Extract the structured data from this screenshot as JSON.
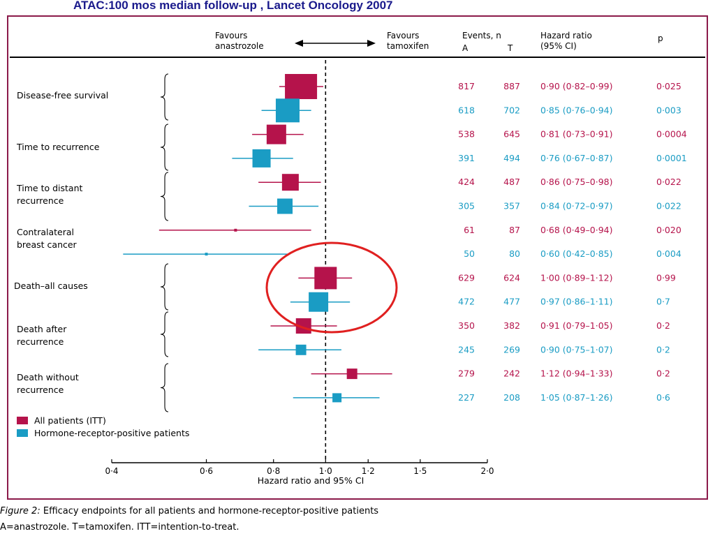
{
  "banner": "ATAC:100 mos median follow-up , Lancet Oncology 2007",
  "header": {
    "favours_a": "Favours\nanastrozole",
    "favours_t": "Favours\ntamoxifen",
    "events": "Events, n",
    "col_a": "A",
    "col_t": "T",
    "hr": "Hazard ratio\n(95% CI)",
    "p": "p"
  },
  "groups": [
    {
      "label": "Disease-free survival"
    },
    {
      "label": "Time to recurrence"
    },
    {
      "label": "Time to distant\nrecurrence"
    },
    {
      "label": "Contralateral\nbreast cancer"
    },
    {
      "label": "Death–all causes"
    },
    {
      "label": "Death after\nrecurrence"
    },
    {
      "label": "Death without\nrecurrence"
    }
  ],
  "legend": {
    "itt": "All patients (ITT)",
    "hr_pos": "Hormone-receptor-positive patients"
  },
  "colors": {
    "itt": "#b5134b",
    "hr_pos": "#1a9cc4",
    "highlight": "#e02020",
    "frame": "#8b1a4a"
  },
  "chart_data": {
    "type": "forest",
    "xlabel": "Hazard ratio and 95% CI",
    "xscale": "log",
    "xlim": [
      0.4,
      2.0
    ],
    "ticks": [
      "0·4",
      "0·6",
      "0·8",
      "1·0",
      "1·2",
      "1·5",
      "2·0"
    ],
    "tick_values": [
      0.4,
      0.6,
      0.8,
      1.0,
      1.2,
      1.5,
      2.0
    ],
    "reference_line": 1.0,
    "rows": [
      {
        "series": "itt",
        "a": "817",
        "t": "887",
        "hr": 0.9,
        "lo": 0.82,
        "hi": 0.99,
        "hr_text": "0·90 (0·82–0·99)",
        "p": "0·025"
      },
      {
        "series": "hr_pos",
        "a": "618",
        "t": "702",
        "hr": 0.85,
        "lo": 0.76,
        "hi": 0.94,
        "hr_text": "0·85 (0·76–0·94)",
        "p": "0·003"
      },
      {
        "series": "itt",
        "a": "538",
        "t": "645",
        "hr": 0.81,
        "lo": 0.73,
        "hi": 0.91,
        "hr_text": "0·81 (0·73–0·91)",
        "p": "0·0004"
      },
      {
        "series": "hr_pos",
        "a": "391",
        "t": "494",
        "hr": 0.76,
        "lo": 0.67,
        "hi": 0.87,
        "hr_text": "0·76 (0·67–0·87)",
        "p": "0·0001"
      },
      {
        "series": "itt",
        "a": "424",
        "t": "487",
        "hr": 0.86,
        "lo": 0.75,
        "hi": 0.98,
        "hr_text": "0·86 (0·75–0·98)",
        "p": "0·022"
      },
      {
        "series": "hr_pos",
        "a": "305",
        "t": "357",
        "hr": 0.84,
        "lo": 0.72,
        "hi": 0.97,
        "hr_text": "0·84 (0·72–0·97)",
        "p": "0·022"
      },
      {
        "series": "itt",
        "a": "61",
        "t": "87",
        "hr": 0.68,
        "lo": 0.49,
        "hi": 0.94,
        "hr_text": "0·68 (0·49–0·94)",
        "p": "0·020"
      },
      {
        "series": "hr_pos",
        "a": "50",
        "t": "80",
        "hr": 0.6,
        "lo": 0.42,
        "hi": 0.85,
        "hr_text": "0·60 (0·42–0·85)",
        "p": "0·004"
      },
      {
        "series": "itt",
        "a": "629",
        "t": "624",
        "hr": 1.0,
        "lo": 0.89,
        "hi": 1.12,
        "hr_text": "1·00 (0·89–1·12)",
        "p": "0·99"
      },
      {
        "series": "hr_pos",
        "a": "472",
        "t": "477",
        "hr": 0.97,
        "lo": 0.86,
        "hi": 1.11,
        "hr_text": "0·97 (0·86–1·11)",
        "p": "0·7"
      },
      {
        "series": "itt",
        "a": "350",
        "t": "382",
        "hr": 0.91,
        "lo": 0.79,
        "hi": 1.05,
        "hr_text": "0·91 (0·79–1·05)",
        "p": "0·2"
      },
      {
        "series": "hr_pos",
        "a": "245",
        "t": "269",
        "hr": 0.9,
        "lo": 0.75,
        "hi": 1.07,
        "hr_text": "0·90 (0·75–1·07)",
        "p": "0·2"
      },
      {
        "series": "itt",
        "a": "279",
        "t": "242",
        "hr": 1.12,
        "lo": 0.94,
        "hi": 1.33,
        "hr_text": "1·12 (0·94–1·33)",
        "p": "0·2"
      },
      {
        "series": "hr_pos",
        "a": "227",
        "t": "208",
        "hr": 1.05,
        "lo": 0.87,
        "hi": 1.26,
        "hr_text": "1·05 (0·87–1·26)",
        "p": "0·6"
      }
    ]
  },
  "caption": {
    "figure_label": "Figure 2:",
    "line1": "Efficacy endpoints for all patients and hormone-receptor-positive patients",
    "line2": "A=anastrozole. T=tamoxifen. ITT=intention-to-treat."
  }
}
